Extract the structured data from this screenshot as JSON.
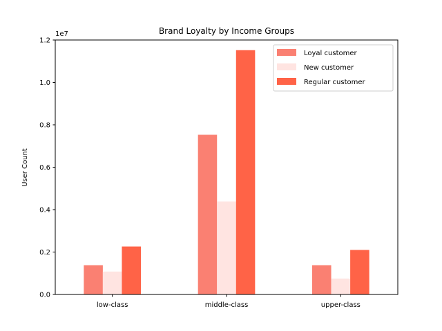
{
  "chart_data": {
    "type": "bar",
    "title": "Brand Loyalty by Income Groups",
    "xlabel": "",
    "ylabel": "User Count",
    "offset_text": "1e7",
    "categories": [
      "low-class",
      "middle-class",
      "upper-class"
    ],
    "series": [
      {
        "name": "Loyal customer",
        "color": "#fa8072",
        "values": [
          1380000,
          7530000,
          1380000
        ]
      },
      {
        "name": "New customer",
        "color": "#ffe4e1",
        "values": [
          1080000,
          4380000,
          750000
        ]
      },
      {
        "name": "Regular customer",
        "color": "#ff6347",
        "values": [
          2260000,
          11520000,
          2100000
        ]
      }
    ],
    "ylim": [
      0,
      12000000
    ],
    "yticks": [
      0,
      2000000,
      4000000,
      6000000,
      8000000,
      10000000,
      12000000
    ],
    "ytick_labels": [
      "0.0",
      "0.2",
      "0.4",
      "0.6",
      "0.8",
      "1.0",
      "1.2"
    ],
    "legend_position": "top-right",
    "grid": false
  }
}
